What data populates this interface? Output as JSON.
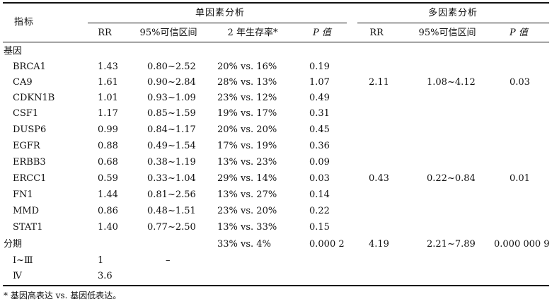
{
  "table": {
    "header": {
      "indicator": "指标",
      "uni_group": "单因素分析",
      "multi_group": "多因素分析",
      "uni_cols": [
        "RR",
        "95%可信区间",
        "2 年生存率*",
        "P 值"
      ],
      "multi_cols": [
        "RR",
        "95%可信区间",
        "P 值"
      ]
    },
    "section_gene": "基因",
    "rows": [
      {
        "name": "BRCA1",
        "rr": "1.43",
        "ci": "0.80~2.52",
        "surv": "20% vs. 16%",
        "p": "0.19",
        "mrr": "",
        "mci": "",
        "mp": ""
      },
      {
        "name": "CA9",
        "rr": "1.61",
        "ci": "0.90~2.84",
        "surv": "28% vs. 13%",
        "p": "1.07",
        "mrr": "2.11",
        "mci": "1.08~4.12",
        "mp": "0.03"
      },
      {
        "name": "CDKN1B",
        "rr": "1.01",
        "ci": "0.93~1.09",
        "surv": "23% vs. 12%",
        "p": "0.49",
        "mrr": "",
        "mci": "",
        "mp": ""
      },
      {
        "name": "CSF1",
        "rr": "1.17",
        "ci": "0.85~1.59",
        "surv": "19% vs. 17%",
        "p": "0.31",
        "mrr": "",
        "mci": "",
        "mp": ""
      },
      {
        "name": "DUSP6",
        "rr": "0.99",
        "ci": "0.84~1.17",
        "surv": "20% vs. 20%",
        "p": "0.45",
        "mrr": "",
        "mci": "",
        "mp": ""
      },
      {
        "name": "EGFR",
        "rr": "0.88",
        "ci": "0.49~1.54",
        "surv": "17% vs. 19%",
        "p": "0.36",
        "mrr": "",
        "mci": "",
        "mp": ""
      },
      {
        "name": "ERBB3",
        "rr": "0.68",
        "ci": "0.38~1.19",
        "surv": "13% vs. 23%",
        "p": "0.09",
        "mrr": "",
        "mci": "",
        "mp": ""
      },
      {
        "name": "ERCC1",
        "rr": "0.59",
        "ci": "0.33~1.04",
        "surv": "29% vs. 14%",
        "p": "0.03",
        "mrr": "0.43",
        "mci": "0.22~0.84",
        "mp": "0.01"
      },
      {
        "name": "FN1",
        "rr": "1.44",
        "ci": "0.81~2.56",
        "surv": "13% vs. 27%",
        "p": "0.14",
        "mrr": "",
        "mci": "",
        "mp": ""
      },
      {
        "name": "MMD",
        "rr": "0.86",
        "ci": "0.48~1.51",
        "surv": "23% vs. 20%",
        "p": "0.22",
        "mrr": "",
        "mci": "",
        "mp": ""
      },
      {
        "name": "STAT1",
        "rr": "1.40",
        "ci": "0.77~2.50",
        "surv": "13% vs. 33%",
        "p": "0.15",
        "mrr": "",
        "mci": "",
        "mp": ""
      }
    ],
    "stage": {
      "label": "分期",
      "surv": "33% vs. 4%",
      "p": "0.000 2",
      "mrr": "4.19",
      "mci": "2.21~7.89",
      "mp": "0.000 000 9"
    },
    "stage_rows": [
      {
        "name": "Ⅰ~Ⅲ",
        "rr": "1",
        "ci": "–"
      },
      {
        "name": "Ⅳ",
        "rr": "3.6",
        "ci": ""
      }
    ],
    "footnote": "* 基因高表达 vs. 基因低表达。"
  }
}
